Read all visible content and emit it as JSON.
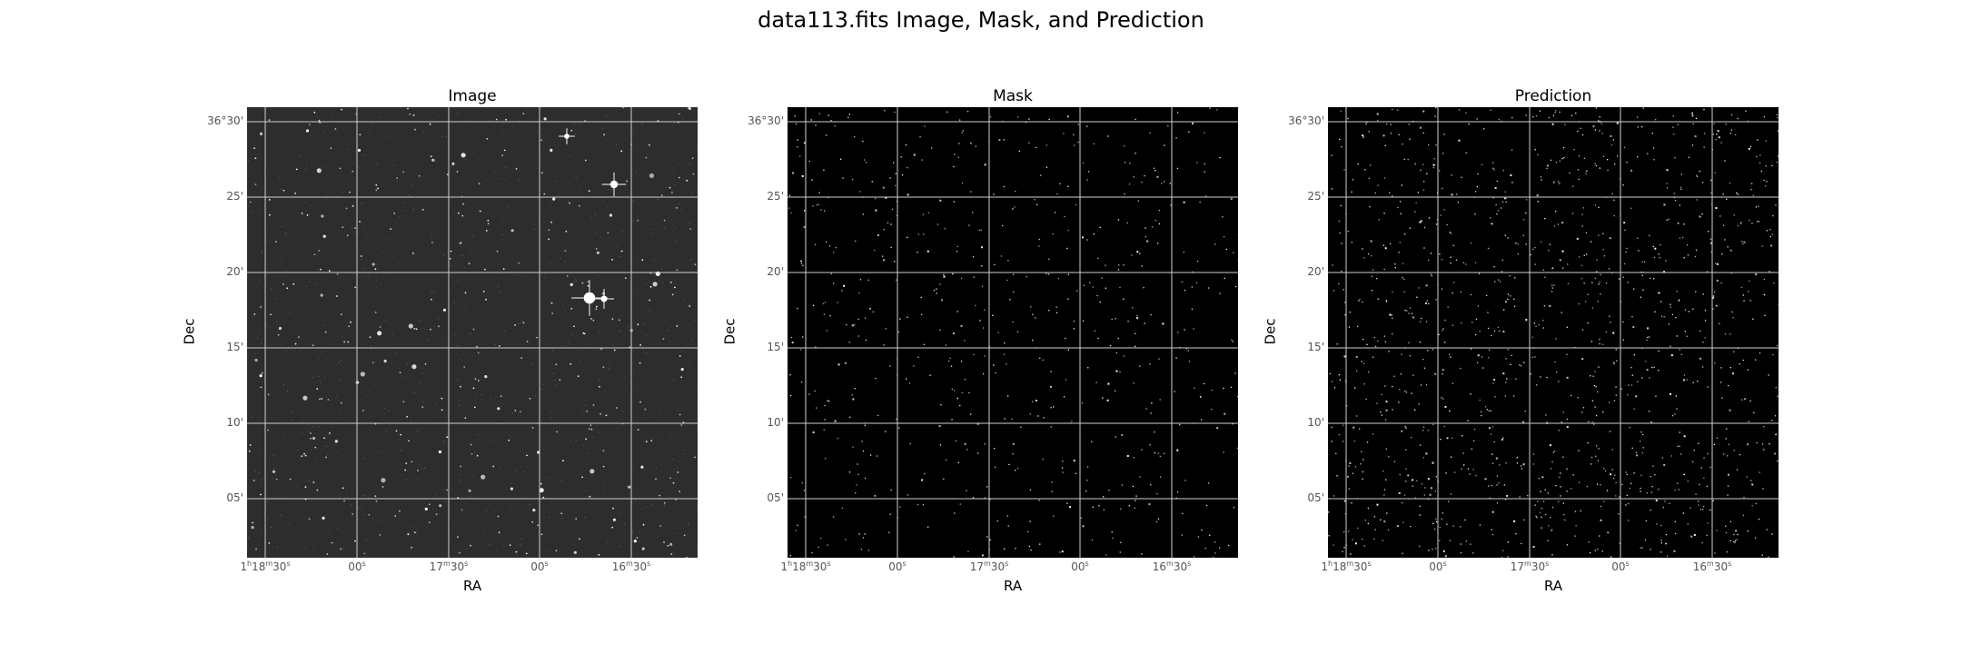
{
  "figure": {
    "title": "data113.fits Image, Mask, and Prediction"
  },
  "panels": [
    {
      "title": "Image",
      "kind": "image",
      "background": "#2d2d2d",
      "xlabel": "RA",
      "ylabel": "Dec",
      "yticks": [
        "36°30'",
        "25'",
        "20'",
        "15'",
        "10'",
        "05'"
      ],
      "xticks": [
        "1h18m30s",
        "00s",
        "17m30s",
        "00s",
        "16m30s"
      ]
    },
    {
      "title": "Mask",
      "kind": "mask",
      "background": "#000000",
      "xlabel": "RA",
      "ylabel": "Dec",
      "yticks": [
        "36°30'",
        "25'",
        "20'",
        "15'",
        "10'",
        "05'"
      ],
      "xticks": [
        "1h18m30s",
        "00s",
        "17m30s",
        "00s",
        "16m30s"
      ]
    },
    {
      "title": "Prediction",
      "kind": "prediction",
      "background": "#000000",
      "xlabel": "RA",
      "ylabel": "Dec",
      "yticks": [
        "36°30'",
        "25'",
        "20'",
        "15'",
        "10'",
        "05'"
      ],
      "xticks": [
        "1h18m30s",
        "00s",
        "17m30s",
        "00s",
        "16m30s"
      ]
    }
  ],
  "colors": {
    "grid": "#cfcfcf",
    "star": "#ffffff",
    "tick_text": "#555555"
  }
}
